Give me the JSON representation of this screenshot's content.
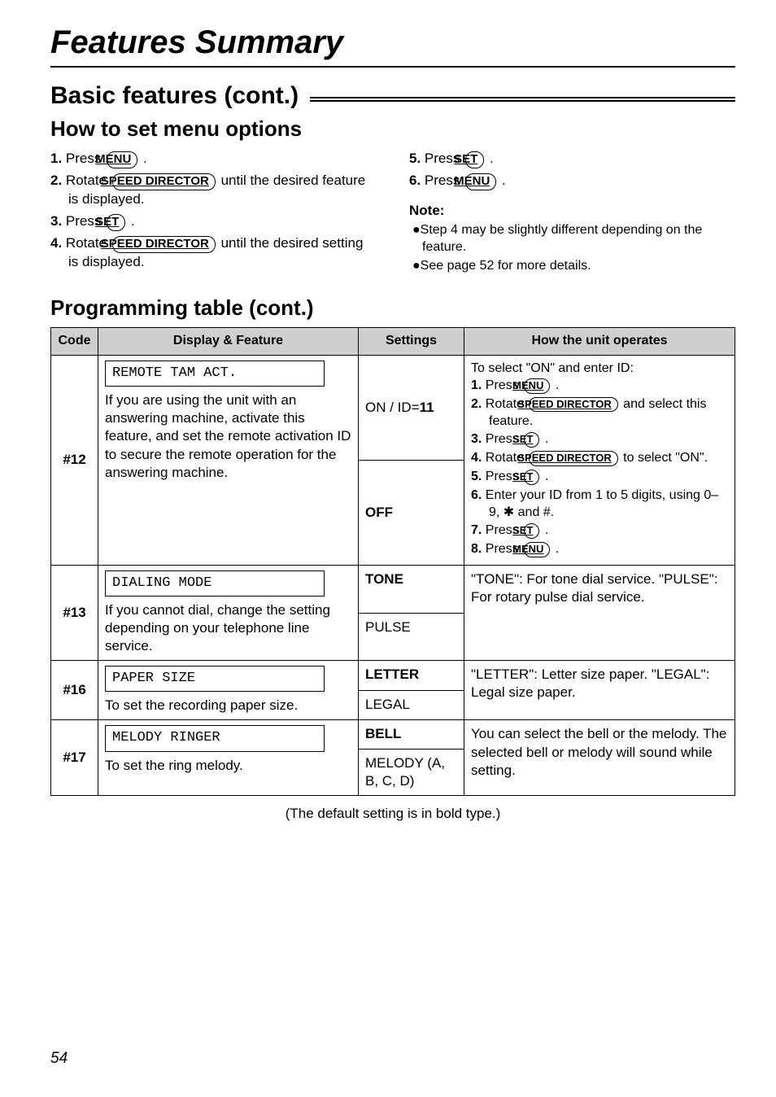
{
  "page": {
    "main_title": "Features Summary",
    "section_title": "Basic features (cont.)",
    "sub_title": "How to set menu options",
    "prog_title": "Programming table (cont.)",
    "default_note": "(The default setting is in bold type.)",
    "page_number": "54"
  },
  "buttons": {
    "menu": "MENU",
    "set": "SET",
    "speed": "SPEED DIRECTOR"
  },
  "left_steps": {
    "s1_pre": "1.",
    "s1_a": "Press ",
    "s2_pre": "2.",
    "s2_a": "Rotate ",
    "s2_b": " until the desired feature is displayed.",
    "s3_pre": "3.",
    "s3_a": "Press ",
    "s4_pre": "4.",
    "s4_a": "Rotate ",
    "s4_b": " until the desired setting is displayed."
  },
  "right_steps": {
    "s5_pre": "5.",
    "s5_a": "Press ",
    "s6_pre": "6.",
    "s6_a": "Press "
  },
  "note": {
    "label": "Note:",
    "b1": "●Step 4 may be slightly different depending on the feature.",
    "b2": "●See page 52 for more details."
  },
  "table": {
    "headers": {
      "code": "Code",
      "feature": "Display & Feature",
      "settings": "Settings",
      "operates": "How the unit operates"
    },
    "r12": {
      "code": "#12",
      "display": "REMOTE TAM ACT.",
      "desc": "If you are using the unit with an answering machine, activate this feature, and set the remote activation ID to secure the remote operation for the answering machine.",
      "setting1_a": "ON / ID=",
      "setting1_b": "11",
      "setting2": "OFF",
      "op_intro": "To select \"ON\" and enter ID:",
      "op1_pre": "1.",
      "op1_a": "Press ",
      "op2_pre": "2.",
      "op2_a": "Rotate ",
      "op2_b": " and select this feature.",
      "op3_pre": "3.",
      "op3_a": "Press ",
      "op4_pre": "4.",
      "op4_a": "Rotate ",
      "op4_b": " to select \"ON\".",
      "op5_pre": "5.",
      "op5_a": "Press ",
      "op6_pre": "6.",
      "op6_a": "Enter your ID from 1 to 5 digits, using 0–9, ✱ and #.",
      "op7_pre": "7.",
      "op7_a": "Press ",
      "op8_pre": "8.",
      "op8_a": "Press "
    },
    "r13": {
      "code": "#13",
      "display": "DIALING MODE",
      "desc": "If you cannot dial, change the setting depending on your telephone line service.",
      "setting1": "TONE",
      "setting2": "PULSE",
      "op": "\"TONE\": For tone dial service. \"PULSE\": For rotary pulse dial service."
    },
    "r16": {
      "code": "#16",
      "display": "PAPER SIZE",
      "desc": "To set the recording paper size.",
      "setting1": "LETTER",
      "setting2": "LEGAL",
      "op": "\"LETTER\": Letter size paper. \"LEGAL\": Legal size paper."
    },
    "r17": {
      "code": "#17",
      "display": "MELODY RINGER",
      "desc": "To set the ring melody.",
      "setting1": "BELL",
      "setting2": "MELODY (A, B, C, D)",
      "op": "You can select the bell or the melody. The selected bell or melody will sound while setting."
    }
  }
}
